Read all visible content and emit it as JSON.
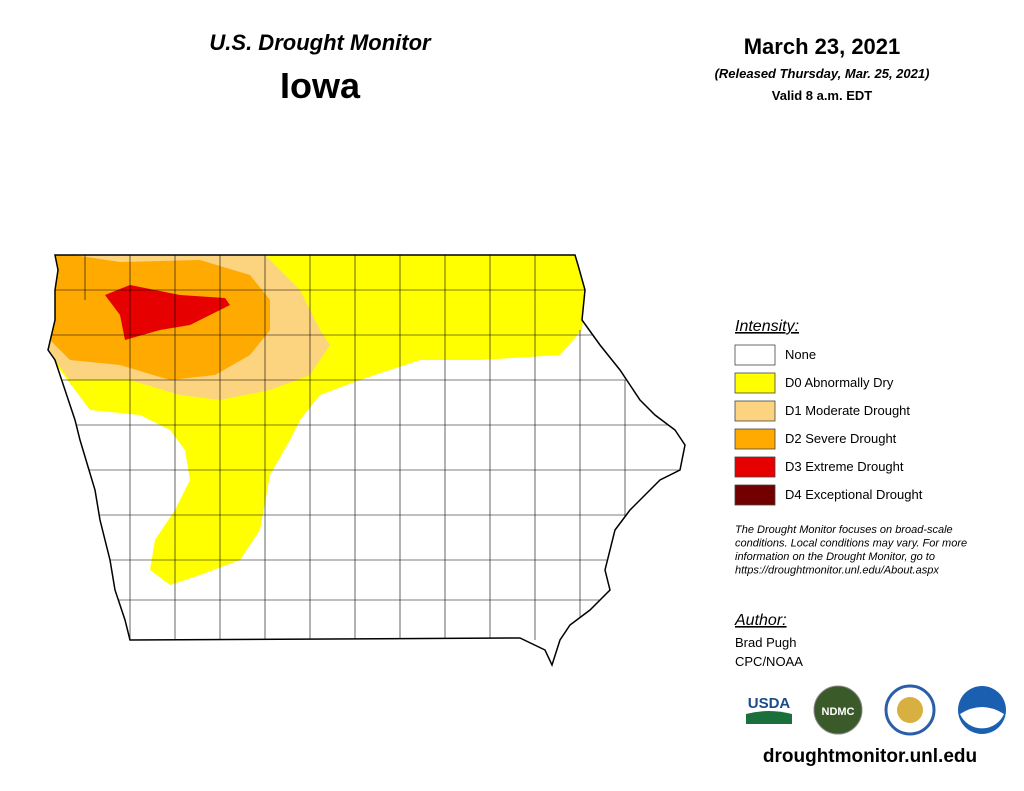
{
  "header": {
    "title": "U.S. Drought Monitor",
    "state": "Iowa"
  },
  "date": {
    "date": "March 23, 2021",
    "released": "(Released Thursday, Mar. 25, 2021)",
    "valid": "Valid 8 a.m. EDT"
  },
  "legend": {
    "title": "Intensity:",
    "items": [
      {
        "label": "None",
        "color": "#ffffff"
      },
      {
        "label": "D0 Abnormally Dry",
        "color": "#ffff00"
      },
      {
        "label": "D1 Moderate Drought",
        "color": "#fcd37f"
      },
      {
        "label": "D2 Severe Drought",
        "color": "#ffaa00"
      },
      {
        "label": "D3 Extreme Drought",
        "color": "#e60000"
      },
      {
        "label": "D4 Exceptional Drought",
        "color": "#730000"
      }
    ]
  },
  "note": [
    "The Drought Monitor focuses on broad-scale",
    "conditions. Local conditions may vary. For more",
    "information on the Drought Monitor, go to",
    "https://droughtmonitor.unl.edu/About.aspx"
  ],
  "author": {
    "heading": "Author:",
    "lines": [
      "Brad Pugh",
      "CPC/NOAA"
    ]
  },
  "logos": [
    "USDA",
    "NDMC"
  ],
  "website": "droughtmonitor.unl.edu"
}
